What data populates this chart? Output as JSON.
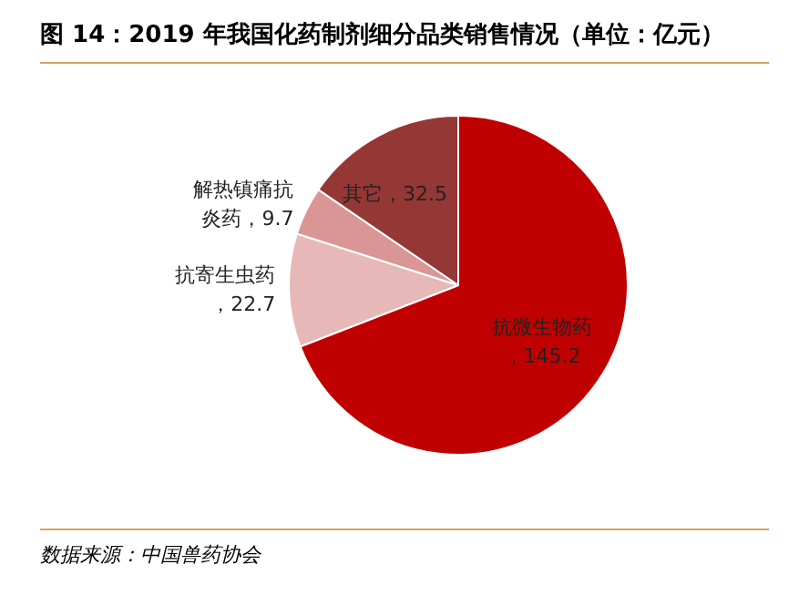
{
  "chart_data": {
    "type": "pie",
    "title": "图 14：2019 年我国化药制剂细分品类销售情况（单位：亿元）",
    "categories": [
      "抗微生物药",
      "抗寄生虫药",
      "解热镇痛抗炎药",
      "其它"
    ],
    "values": [
      145.2,
      22.7,
      9.7,
      32.5
    ],
    "colors": [
      "#c00000",
      "#e6b8b7",
      "#d99694",
      "#953735"
    ],
    "value_labels": [
      "，145.2",
      "，22.7",
      "，9.7",
      "，32.5"
    ],
    "legend": false,
    "annotations": [
      "数据来源：中国兽药协会"
    ]
  }
}
